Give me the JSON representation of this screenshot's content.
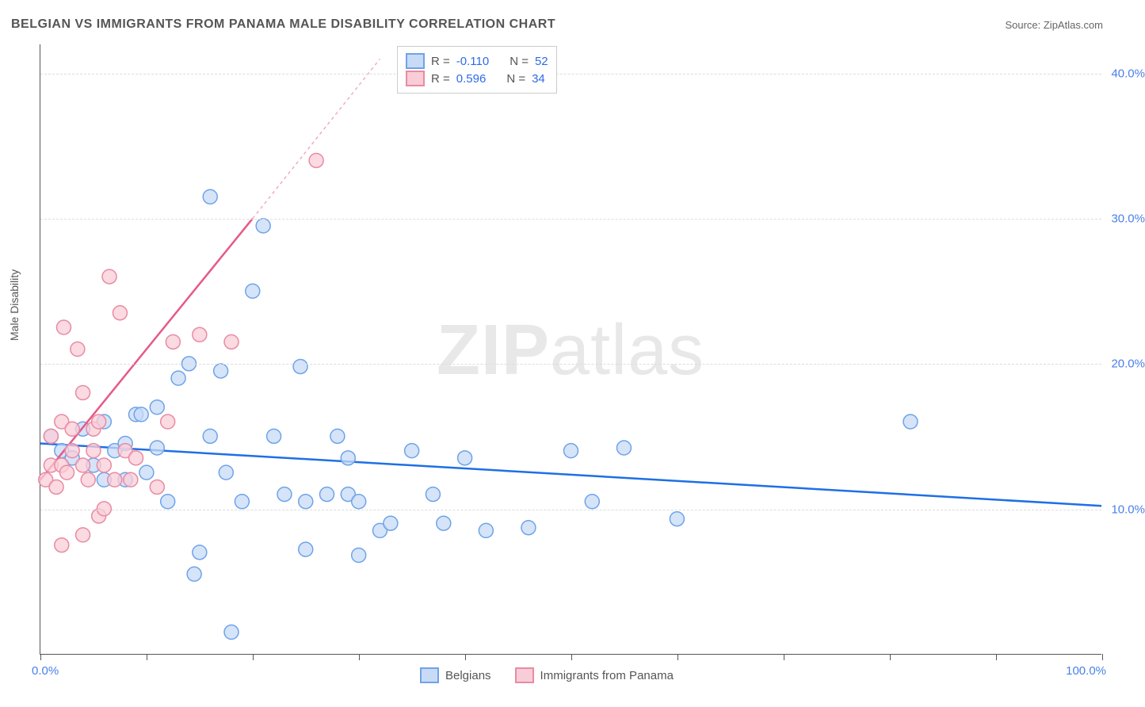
{
  "title": "BELGIAN VS IMMIGRANTS FROM PANAMA MALE DISABILITY CORRELATION CHART",
  "source": "Source: ZipAtlas.com",
  "y_axis_label": "Male Disability",
  "watermark": {
    "bold": "ZIP",
    "rest": "atlas"
  },
  "chart": {
    "type": "scatter",
    "background_color": "#ffffff",
    "grid_color": "#dddddd",
    "axis_color": "#555555",
    "xlim": [
      0,
      100
    ],
    "ylim": [
      0,
      42
    ],
    "x_ticks": [
      0,
      10,
      20,
      30,
      40,
      50,
      60,
      70,
      80,
      90,
      100
    ],
    "x_tick_labels": {
      "0": "0.0%",
      "100": "100.0%"
    },
    "y_grid": [
      10,
      20,
      30,
      40
    ],
    "y_tick_labels": {
      "10": "10.0%",
      "20": "20.0%",
      "30": "30.0%",
      "40": "40.0%"
    },
    "marker_radius": 9,
    "marker_stroke_width": 1.5,
    "line_width": 2.5,
    "series": [
      {
        "name": "Belgians",
        "fill": "#c7dbf7",
        "stroke": "#6fa3e8",
        "line_color": "#1f6fe5",
        "R": "-0.110",
        "N": "52",
        "trend": {
          "x1": 0,
          "y1": 14.5,
          "x2": 100,
          "y2": 10.2
        },
        "points": [
          [
            1,
            15
          ],
          [
            2,
            14
          ],
          [
            3,
            13.5
          ],
          [
            4,
            15.5
          ],
          [
            5,
            13
          ],
          [
            6,
            16
          ],
          [
            7,
            14
          ],
          [
            8,
            12
          ],
          [
            9,
            16.5
          ],
          [
            9.5,
            16.5
          ],
          [
            10,
            12.5
          ],
          [
            11,
            17
          ],
          [
            11,
            14.2
          ],
          [
            12,
            10.5
          ],
          [
            13,
            19
          ],
          [
            14,
            20
          ],
          [
            14.5,
            5.5
          ],
          [
            15,
            7
          ],
          [
            16,
            15
          ],
          [
            16,
            31.5
          ],
          [
            17,
            19.5
          ],
          [
            17.5,
            12.5
          ],
          [
            18,
            1.5
          ],
          [
            19,
            10.5
          ],
          [
            20,
            25
          ],
          [
            21,
            29.5
          ],
          [
            22,
            15
          ],
          [
            23,
            11
          ],
          [
            24.5,
            19.8
          ],
          [
            25,
            10.5
          ],
          [
            25,
            7.2
          ],
          [
            27,
            11
          ],
          [
            28,
            15
          ],
          [
            29,
            13.5
          ],
          [
            29,
            11
          ],
          [
            30,
            10.5
          ],
          [
            30,
            6.8
          ],
          [
            32,
            8.5
          ],
          [
            33,
            9
          ],
          [
            35,
            14
          ],
          [
            37,
            11
          ],
          [
            38,
            9
          ],
          [
            40,
            13.5
          ],
          [
            42,
            8.5
          ],
          [
            46,
            8.7
          ],
          [
            50,
            14
          ],
          [
            52,
            10.5
          ],
          [
            55,
            14.2
          ],
          [
            60,
            9.3
          ],
          [
            82,
            16
          ],
          [
            8,
            14.5
          ],
          [
            6,
            12
          ]
        ]
      },
      {
        "name": "Immigrants from Panama",
        "fill": "#f9cdd8",
        "stroke": "#e88ba3",
        "line_color": "#e65a87",
        "R": "0.596",
        "N": "34",
        "trend": {
          "x1": 0,
          "y1": 12,
          "x2": 20,
          "y2": 30
        },
        "trend_dash": {
          "x1": 20,
          "y1": 30,
          "x2": 32,
          "y2": 41
        },
        "points": [
          [
            0.5,
            12
          ],
          [
            1,
            13
          ],
          [
            1,
            15
          ],
          [
            1.5,
            11.5
          ],
          [
            2,
            16
          ],
          [
            2,
            13
          ],
          [
            2.2,
            22.5
          ],
          [
            2.5,
            12.5
          ],
          [
            3,
            14
          ],
          [
            3,
            15.5
          ],
          [
            3.5,
            21
          ],
          [
            4,
            18
          ],
          [
            4,
            13
          ],
          [
            4,
            8.2
          ],
          [
            4.5,
            12
          ],
          [
            5,
            15.5
          ],
          [
            5,
            14
          ],
          [
            5.5,
            16
          ],
          [
            5.5,
            9.5
          ],
          [
            6,
            13
          ],
          [
            6,
            10
          ],
          [
            6.5,
            26
          ],
          [
            7,
            12
          ],
          [
            7.5,
            23.5
          ],
          [
            8,
            14
          ],
          [
            8.5,
            12
          ],
          [
            9,
            13.5
          ],
          [
            11,
            11.5
          ],
          [
            12,
            16
          ],
          [
            12.5,
            21.5
          ],
          [
            15,
            22
          ],
          [
            18,
            21.5
          ],
          [
            2,
            7.5
          ],
          [
            26,
            34
          ]
        ]
      }
    ]
  },
  "legend_top": {
    "label_R": "R =",
    "label_N": "N ="
  },
  "legend_bottom": [
    "Belgians",
    "Immigrants from Panama"
  ]
}
